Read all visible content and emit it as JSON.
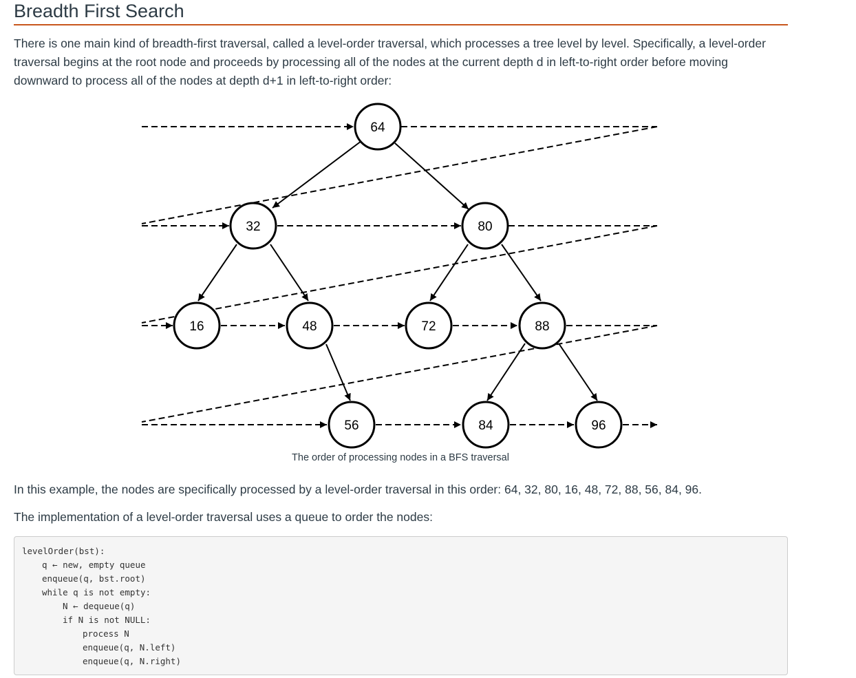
{
  "page": {
    "title": "Breadth First Search",
    "intro": "There is one main kind of breadth-first traversal, called a level-order traversal, which processes a tree level by level. Specifically, a level-order traversal begins at the root node and proceeds by processing all of the nodes at the current depth d in left-to-right order before moving downward to process all of the nodes at depth d+1 in left-to-right order:",
    "order_text": "In this example, the nodes are specifically processed by a level-order traversal in this order: 64, 32, 80, 16, 48, 72, 88, 56, 84, 96.",
    "impl_text": "The implementation of a level-order traversal uses a queue to order the nodes:"
  },
  "figure": {
    "caption": "The order of processing nodes in a BFS traversal",
    "nodes": {
      "n64": "64",
      "n32": "32",
      "n80": "80",
      "n16": "16",
      "n48": "48",
      "n72": "72",
      "n88": "88",
      "n56": "56",
      "n84": "84",
      "n96": "96"
    }
  },
  "code": {
    "lines": [
      "levelOrder(bst):",
      "q ← new, empty queue",
      "enqueue(q, bst.root)",
      "while q is not empty:",
      "N ← dequeue(q)",
      "if N is not NULL:",
      "process N",
      "enqueue(q, N.left)",
      "enqueue(q, N.right)"
    ]
  },
  "colors": {
    "accent_rule": "#c8561c",
    "text": "#2d3b45",
    "code_bg": "#f5f5f5"
  }
}
